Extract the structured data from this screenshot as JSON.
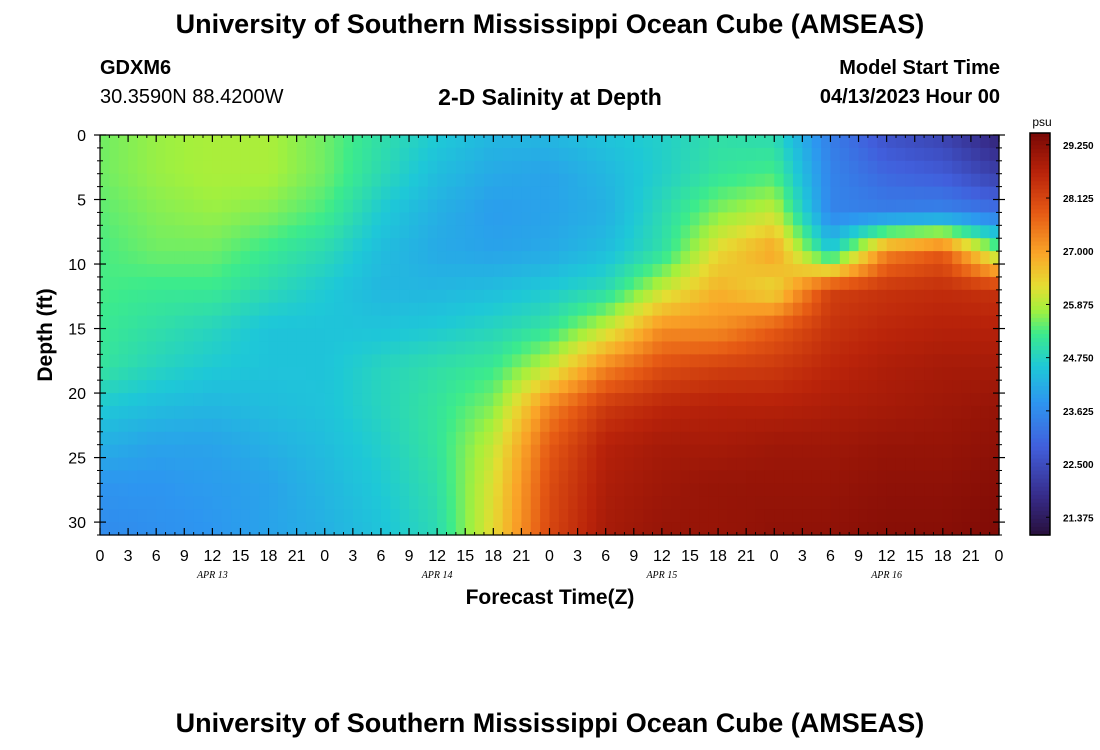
{
  "header": {
    "title": "University of Southern Mississippi Ocean Cube (AMSEAS)",
    "station_id": "GDXM6",
    "coordinates": "30.3590N  88.4200W",
    "chart_title": "2-D Salinity at Depth",
    "model_start_label": "Model Start Time",
    "model_start_value": "04/13/2023 Hour 00"
  },
  "footer": {
    "title": "University of Southern Mississippi Ocean Cube (AMSEAS)"
  },
  "chart_data": {
    "type": "heatmap",
    "title": "2-D Salinity at Depth",
    "xlabel": "Forecast Time(Z)",
    "ylabel": "Depth (ft)",
    "x_ticks": [
      "0",
      "3",
      "6",
      "9",
      "12",
      "15",
      "18",
      "21",
      "0",
      "3",
      "6",
      "9",
      "12",
      "15",
      "18",
      "21",
      "0",
      "3",
      "6",
      "9",
      "12",
      "15",
      "18",
      "21",
      "0",
      "3",
      "6",
      "9",
      "12",
      "15",
      "18",
      "21",
      "0"
    ],
    "x_day_labels": [
      "APR 13",
      "APR 14",
      "APR 15",
      "APR 16"
    ],
    "x_range_hours": [
      0,
      96
    ],
    "y_ticks": [
      0,
      5,
      10,
      15,
      20,
      25,
      30
    ],
    "y_range_ft": [
      0,
      31
    ],
    "y_inverted": true,
    "colorbar": {
      "unit": "psu",
      "ticks": [
        "29.250",
        "28.125",
        "27.000",
        "25.875",
        "24.750",
        "23.625",
        "22.500",
        "21.375"
      ],
      "range": [
        21.0,
        29.5
      ]
    },
    "grid_hours": [
      0,
      6,
      12,
      18,
      24,
      30,
      36,
      42,
      48,
      54,
      60,
      66,
      72,
      78,
      84,
      90,
      96
    ],
    "grid_depths": [
      0,
      3,
      6,
      9,
      12,
      15,
      18,
      21,
      24,
      27,
      31
    ],
    "values": [
      [
        25.5,
        25.7,
        25.8,
        25.8,
        25.5,
        25.0,
        24.6,
        24.3,
        24.3,
        24.5,
        24.7,
        25.0,
        24.9,
        23.4,
        22.6,
        22.3,
        21.6
      ],
      [
        25.5,
        25.7,
        25.8,
        25.8,
        25.5,
        24.9,
        24.4,
        24.1,
        24.0,
        24.3,
        24.7,
        25.1,
        25.3,
        23.5,
        23.0,
        22.8,
        22.2
      ],
      [
        25.4,
        25.6,
        25.7,
        25.6,
        25.3,
        24.6,
        24.2,
        23.9,
        24.0,
        24.2,
        24.9,
        25.6,
        26.0,
        23.5,
        23.4,
        23.5,
        23.2
      ],
      [
        25.3,
        25.5,
        25.5,
        25.2,
        24.9,
        24.4,
        24.1,
        24.0,
        24.1,
        24.4,
        25.0,
        26.3,
        27.0,
        24.6,
        27.3,
        27.8,
        25.5
      ],
      [
        25.3,
        25.2,
        25.2,
        24.9,
        24.6,
        24.3,
        24.3,
        24.4,
        24.6,
        24.9,
        26.0,
        26.8,
        26.3,
        28.2,
        28.4,
        28.5,
        28.4
      ],
      [
        25.2,
        25.0,
        24.8,
        24.5,
        24.5,
        24.5,
        24.6,
        24.8,
        25.1,
        26.0,
        27.2,
        27.2,
        27.8,
        28.4,
        28.6,
        28.7,
        28.7
      ],
      [
        25.1,
        24.8,
        24.6,
        24.5,
        24.5,
        24.8,
        25.0,
        25.2,
        26.0,
        27.3,
        28.0,
        28.2,
        28.3,
        28.6,
        28.8,
        28.9,
        28.9
      ],
      [
        24.6,
        24.4,
        24.3,
        24.4,
        24.5,
        24.8,
        25.1,
        25.6,
        27.3,
        28.3,
        28.6,
        28.7,
        28.7,
        28.8,
        28.9,
        29.0,
        29.1
      ],
      [
        24.2,
        24.0,
        24.0,
        24.2,
        24.4,
        24.7,
        25.1,
        26.0,
        27.8,
        28.7,
        28.9,
        28.9,
        29.0,
        29.0,
        29.1,
        29.1,
        29.2
      ],
      [
        23.8,
        23.8,
        23.9,
        24.0,
        24.3,
        24.6,
        25.0,
        26.2,
        28.0,
        28.8,
        29.0,
        29.1,
        29.1,
        29.1,
        29.2,
        29.2,
        29.3
      ],
      [
        23.6,
        23.7,
        23.8,
        24.0,
        24.2,
        24.5,
        24.9,
        26.3,
        28.1,
        28.9,
        29.1,
        29.1,
        29.2,
        29.2,
        29.3,
        29.3,
        29.4
      ]
    ]
  }
}
